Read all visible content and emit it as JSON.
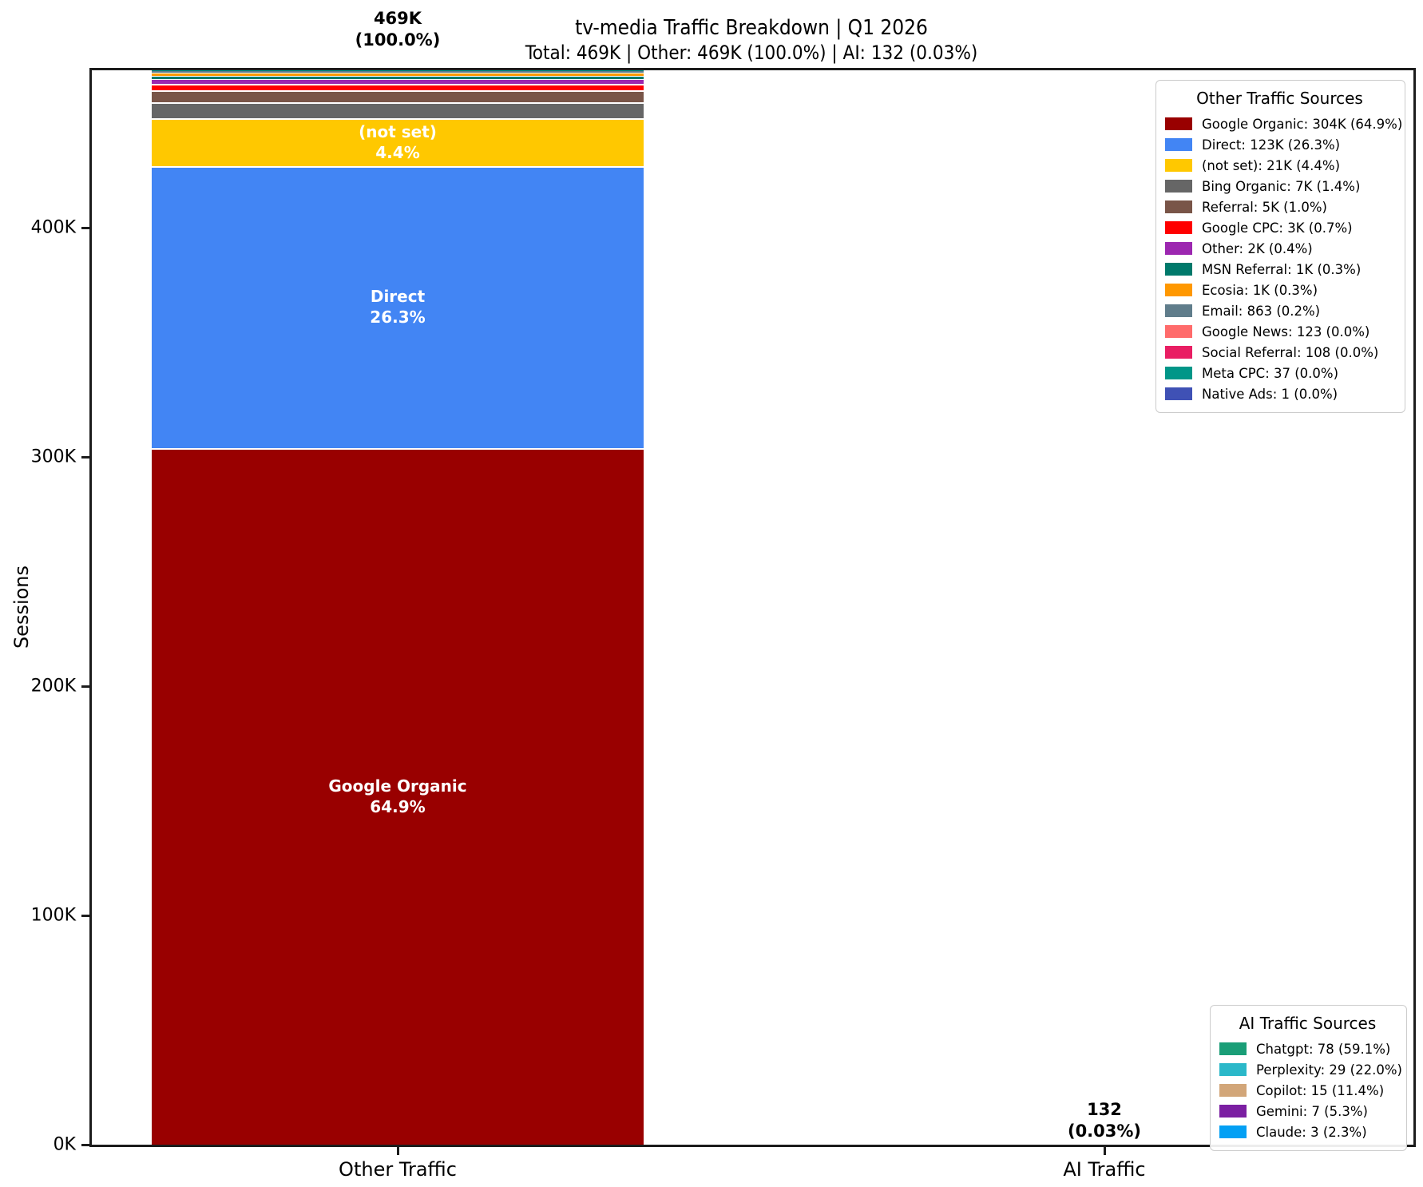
{
  "title": "tv-media Traffic Breakdown | Q1 2026",
  "subtitle": "Total: 469K | Other: 469K (100.0%) | AI: 132 (0.03%)",
  "y_axis_title": "Sessions",
  "chart_data": {
    "type": "bar",
    "stacked": true,
    "grid": false,
    "ylabel": "Sessions",
    "ylim": [
      0,
      469000
    ],
    "categories": [
      "Other Traffic",
      "AI Traffic"
    ],
    "yticks": [
      {
        "value": 0,
        "label": "0K"
      },
      {
        "value": 100000,
        "label": "100K"
      },
      {
        "value": 200000,
        "label": "200K"
      },
      {
        "value": 300000,
        "label": "300K"
      },
      {
        "value": 400000,
        "label": "400K"
      }
    ],
    "bars": [
      {
        "category": "Other Traffic",
        "annotation": "469K\n(100.0%)",
        "segments": [
          {
            "name": "Google Organic",
            "value": 304000,
            "display": "304K",
            "pct": "64.9%",
            "color": "#990000",
            "label_in_bar": true
          },
          {
            "name": "Direct",
            "value": 123000,
            "display": "123K",
            "pct": "26.3%",
            "color": "#4285F4",
            "label_in_bar": true
          },
          {
            "name": "(not set)",
            "value": 21000,
            "display": "21K",
            "pct": "4.4%",
            "color": "#FFC800",
            "label_in_bar": true
          },
          {
            "name": "Bing Organic",
            "value": 7000,
            "display": "7K",
            "pct": "1.4%",
            "color": "#666666",
            "label_in_bar": false
          },
          {
            "name": "Referral",
            "value": 5000,
            "display": "5K",
            "pct": "1.0%",
            "color": "#795548",
            "label_in_bar": false
          },
          {
            "name": "Google CPC",
            "value": 3000,
            "display": "3K",
            "pct": "0.7%",
            "color": "#FF0000",
            "label_in_bar": false
          },
          {
            "name": "Other",
            "value": 2000,
            "display": "2K",
            "pct": "0.4%",
            "color": "#9C27B0",
            "label_in_bar": false
          },
          {
            "name": "MSN Referral",
            "value": 1400,
            "display": "1K",
            "pct": "0.3%",
            "color": "#00796B",
            "label_in_bar": false
          },
          {
            "name": "Ecosia",
            "value": 1300,
            "display": "1K",
            "pct": "0.3%",
            "color": "#FF9800",
            "label_in_bar": false
          },
          {
            "name": "Email",
            "value": 863,
            "display": "863",
            "pct": "0.2%",
            "color": "#607D8B",
            "label_in_bar": false
          },
          {
            "name": "Google News",
            "value": 123,
            "display": "123",
            "pct": "0.0%",
            "color": "#FF6B6B",
            "label_in_bar": false
          },
          {
            "name": "Social Referral",
            "value": 108,
            "display": "108",
            "pct": "0.0%",
            "color": "#E91E63",
            "label_in_bar": false
          },
          {
            "name": "Meta CPC",
            "value": 37,
            "display": "37",
            "pct": "0.0%",
            "color": "#009688",
            "label_in_bar": false
          },
          {
            "name": "Native Ads",
            "value": 1,
            "display": "1",
            "pct": "0.0%",
            "color": "#3F51B5",
            "label_in_bar": false
          }
        ]
      },
      {
        "category": "AI Traffic",
        "annotation": "132\n(0.03%)",
        "segments": [
          {
            "name": "Chatgpt",
            "value": 78,
            "display": "78",
            "pct": "59.1%",
            "color": "#1A9E77",
            "label_in_bar": false
          },
          {
            "name": "Perplexity",
            "value": 29,
            "display": "29",
            "pct": "22.0%",
            "color": "#2BB8C9",
            "label_in_bar": false
          },
          {
            "name": "Copilot",
            "value": 15,
            "display": "15",
            "pct": "11.4%",
            "color": "#D2A679",
            "label_in_bar": false
          },
          {
            "name": "Gemini",
            "value": 7,
            "display": "7",
            "pct": "5.3%",
            "color": "#7B1FA2",
            "label_in_bar": false
          },
          {
            "name": "Claude",
            "value": 3,
            "display": "3",
            "pct": "2.3%",
            "color": "#03A0F4",
            "label_in_bar": false
          }
        ]
      }
    ],
    "legends": [
      {
        "title": "Other Traffic Sources",
        "bar": 0,
        "position": "upper right"
      },
      {
        "title": "AI Traffic Sources",
        "bar": 1,
        "position": "lower right"
      }
    ]
  },
  "colors": {
    "background": "#ffffff",
    "spine": "#1c1c1c",
    "text": "#000000",
    "bar_label_text": "#ffffff",
    "legend_border": "#cccccc"
  }
}
